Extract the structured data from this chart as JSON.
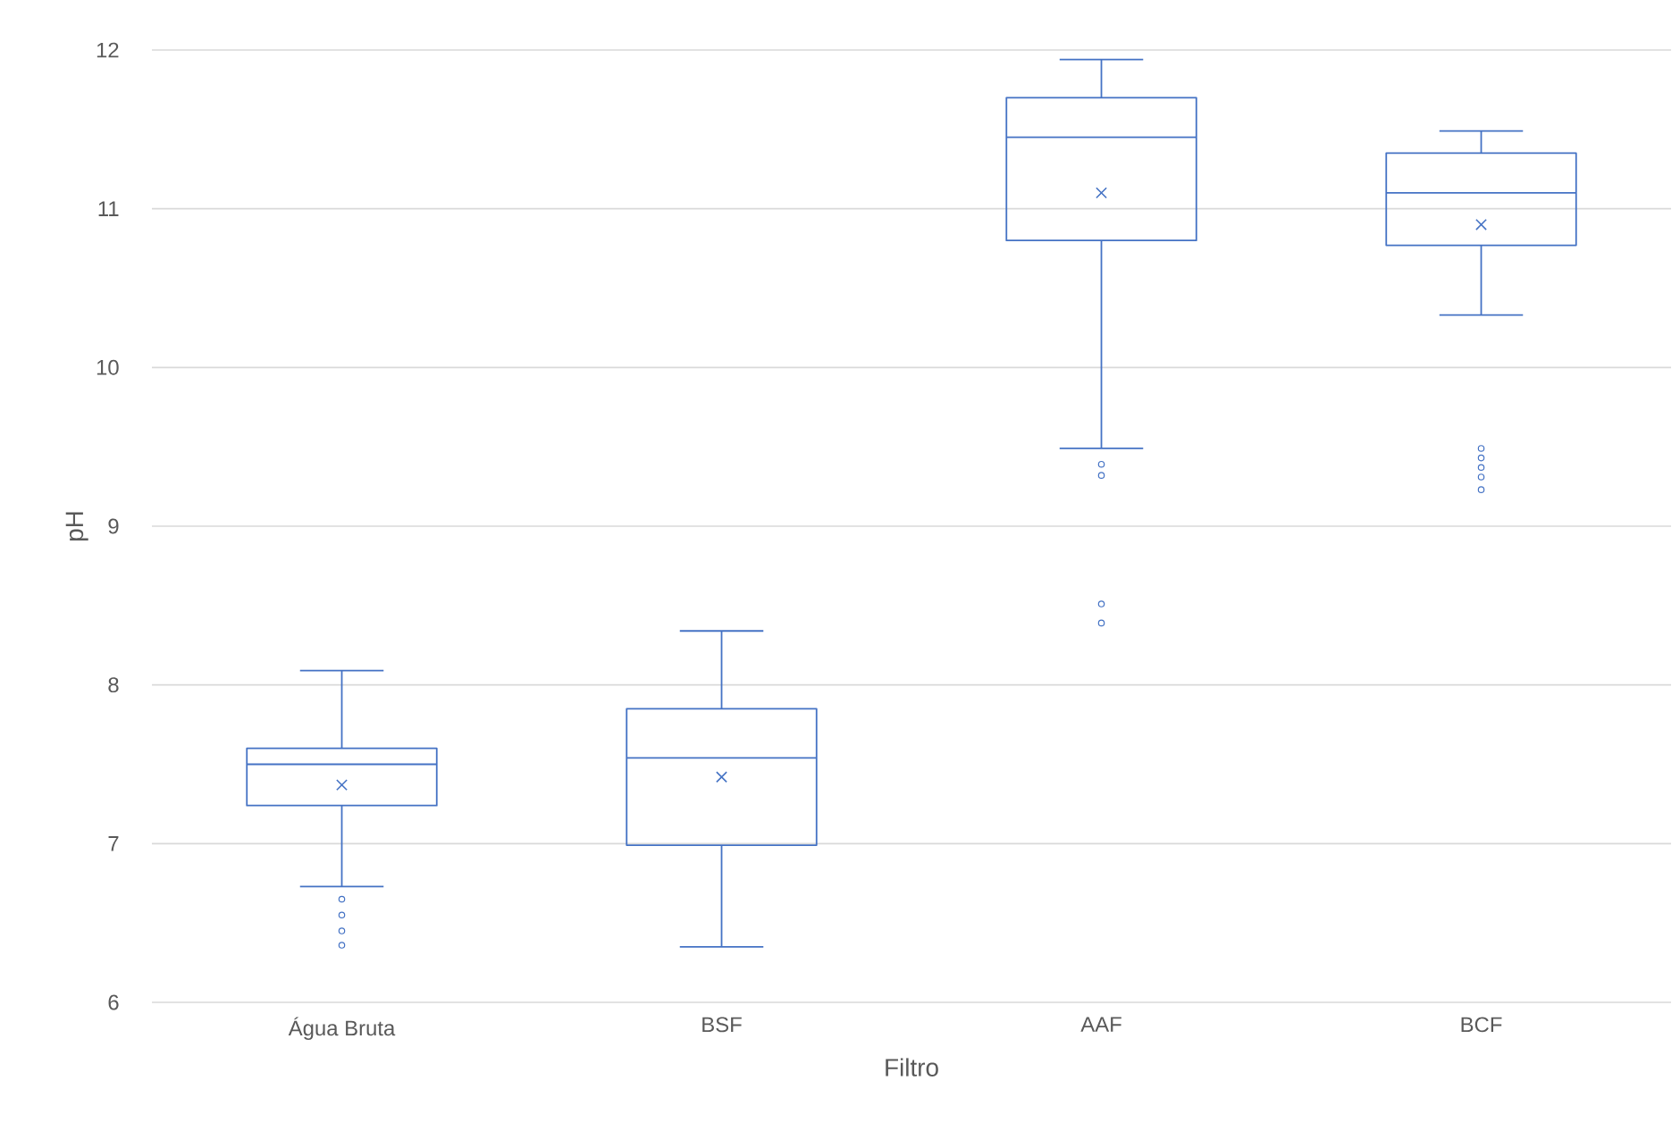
{
  "chart_data": {
    "type": "box",
    "xlabel": "Filtro",
    "ylabel": "pH",
    "categories": [
      "Água Bruta",
      "BSF",
      "AAF",
      "BCF"
    ],
    "boxes": [
      {
        "low": 6.73,
        "q1": 7.24,
        "median": 7.5,
        "q3": 7.6,
        "high": 8.09,
        "mean": 7.37,
        "outliers": [
          6.65,
          6.55,
          6.45,
          6.36
        ]
      },
      {
        "low": 6.35,
        "q1": 6.99,
        "median": 7.54,
        "q3": 7.85,
        "high": 8.34,
        "mean": 7.42
      },
      {
        "low": 9.49,
        "q1": 10.8,
        "median": 11.45,
        "q3": 11.7,
        "high": 11.94,
        "mean": 11.1,
        "outliers": [
          9.39,
          9.32,
          8.51,
          8.39
        ]
      },
      {
        "low": 10.33,
        "q1": 10.77,
        "median": 11.1,
        "q3": 11.35,
        "high": 11.49,
        "mean": 10.9,
        "outliers": [
          9.49,
          9.43,
          9.37,
          9.31,
          9.23
        ]
      }
    ],
    "color": "#4472c4",
    "ylim": [
      6,
      12
    ],
    "yticks": [
      6,
      7,
      8,
      9,
      10,
      11,
      12
    ],
    "grid": "y"
  }
}
